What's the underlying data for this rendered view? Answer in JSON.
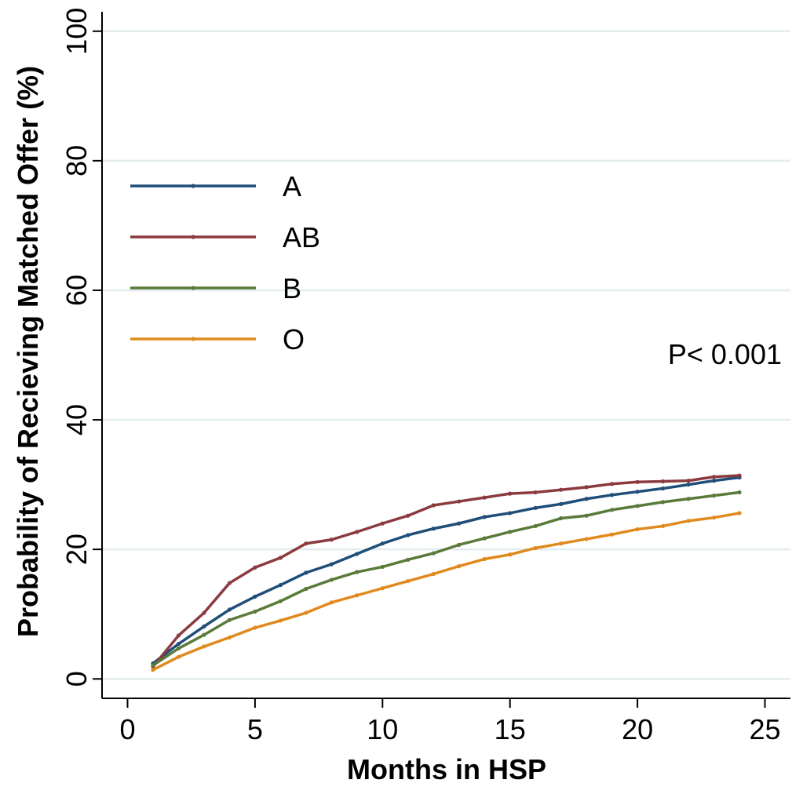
{
  "chart_data": {
    "type": "line",
    "title": "",
    "xlabel": "Months in HSP",
    "ylabel": "Probability of Recieving Matched Offer (%)",
    "xlim": [
      -1,
      26
    ],
    "ylim": [
      -3,
      103
    ],
    "xticks": [
      0,
      5,
      10,
      15,
      20,
      25
    ],
    "yticks": [
      0,
      20,
      40,
      60,
      80,
      100
    ],
    "grid": "horizontal",
    "legend_position": "top-left",
    "annotation": "P< 0.001",
    "x": [
      1,
      2,
      3,
      4,
      5,
      6,
      7,
      8,
      9,
      10,
      11,
      12,
      13,
      14,
      15,
      16,
      17,
      18,
      19,
      20,
      21,
      22,
      23,
      24
    ],
    "series": [
      {
        "name": "A",
        "color": "#1f4e79",
        "values": [
          2.4,
          5.4,
          8.1,
          10.7,
          12.7,
          14.5,
          16.4,
          17.7,
          19.3,
          20.9,
          22.2,
          23.2,
          24.0,
          25.0,
          25.6,
          26.4,
          27.0,
          27.8,
          28.4,
          28.9,
          29.4,
          30.0,
          30.6,
          31.1
        ]
      },
      {
        "name": "AB",
        "color": "#8b3a3e",
        "values": [
          1.9,
          6.7,
          10.2,
          14.8,
          17.2,
          18.7,
          20.9,
          21.5,
          22.7,
          24.0,
          25.2,
          26.8,
          27.4,
          28.0,
          28.6,
          28.8,
          29.2,
          29.6,
          30.1,
          30.4,
          30.5,
          30.6,
          31.2,
          31.4
        ]
      },
      {
        "name": "B",
        "color": "#5a7a3a",
        "values": [
          2.1,
          4.7,
          6.8,
          9.1,
          10.4,
          12.0,
          13.9,
          15.3,
          16.5,
          17.3,
          18.4,
          19.4,
          20.7,
          21.7,
          22.7,
          23.6,
          24.8,
          25.2,
          26.1,
          26.7,
          27.3,
          27.8,
          28.3,
          28.8
        ]
      },
      {
        "name": "O",
        "color": "#e08a1e",
        "values": [
          1.4,
          3.4,
          5.0,
          6.4,
          7.9,
          9.0,
          10.2,
          11.8,
          12.9,
          14.0,
          15.1,
          16.2,
          17.4,
          18.5,
          19.2,
          20.2,
          20.9,
          21.6,
          22.3,
          23.1,
          23.6,
          24.4,
          24.9,
          25.6
        ]
      }
    ]
  }
}
